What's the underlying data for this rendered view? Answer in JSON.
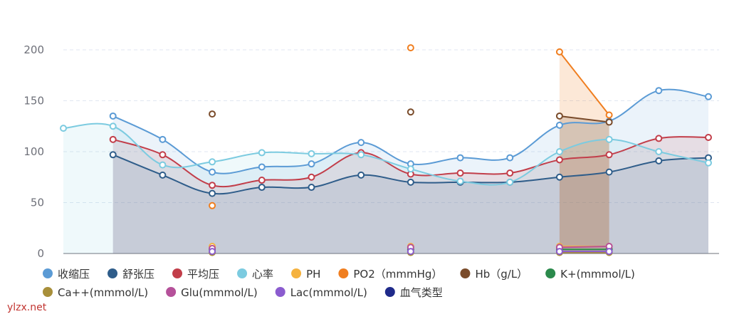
{
  "watermark": "ylzx.net",
  "chart_data": {
    "type": "line",
    "title": "",
    "xlabel": "",
    "ylabel": "",
    "ylim": [
      0,
      200
    ],
    "yticks": [
      0,
      50,
      100,
      150,
      200
    ],
    "grid": true,
    "legend_position": "bottom",
    "x": [
      0,
      1,
      2,
      3,
      4,
      5,
      6,
      7,
      8,
      9,
      10,
      11,
      12,
      13
    ],
    "series": [
      {
        "name": "收缩压",
        "color": "#5b9bd5",
        "area": true,
        "values": [
          null,
          135,
          112,
          80,
          85,
          88,
          109,
          88,
          94,
          94,
          126,
          130,
          160,
          154
        ]
      },
      {
        "name": "舒张压",
        "color": "#2f5d8a",
        "area": true,
        "values": [
          null,
          97,
          77,
          59,
          65,
          65,
          77,
          70,
          70,
          70,
          75,
          80,
          91,
          94
        ]
      },
      {
        "name": "平均压",
        "color": "#c23e4a",
        "area": true,
        "values": [
          null,
          112,
          97,
          67,
          72,
          75,
          99,
          78,
          79,
          79,
          92,
          97,
          113,
          114
        ]
      },
      {
        "name": "心率",
        "color": "#7ccbe0",
        "area": true,
        "values": [
          123,
          125,
          87,
          90,
          99,
          98,
          97,
          83,
          71,
          70,
          100,
          112,
          100,
          89
        ]
      },
      {
        "name": "PH",
        "color": "#f5b23f",
        "values": [
          null,
          null,
          null,
          7,
          null,
          null,
          null,
          7,
          null,
          null,
          7,
          7,
          null,
          null
        ]
      },
      {
        "name": "PO2（mmmHg）",
        "color": "#f07e1f",
        "area": true,
        "values": [
          null,
          null,
          null,
          47,
          null,
          null,
          null,
          202,
          null,
          null,
          198,
          136,
          null,
          null
        ]
      },
      {
        "name": "Hb（g/L）",
        "color": "#7a4b2a",
        "area": true,
        "values": [
          null,
          null,
          null,
          137,
          null,
          null,
          null,
          139,
          null,
          null,
          135,
          129,
          null,
          null
        ]
      },
      {
        "name": "K+(mmmol/L)",
        "color": "#2b8a4c",
        "values": [
          null,
          null,
          null,
          4,
          null,
          null,
          null,
          4,
          null,
          null,
          4,
          4,
          null,
          null
        ]
      },
      {
        "name": "Ca++(mmmol/L)",
        "color": "#a88f3a",
        "values": [
          null,
          null,
          null,
          1,
          null,
          null,
          null,
          1,
          null,
          null,
          1,
          1,
          null,
          null
        ]
      },
      {
        "name": "Glu(mmmol/L)",
        "color": "#b5519a",
        "values": [
          null,
          null,
          null,
          5,
          null,
          null,
          null,
          6,
          null,
          null,
          6,
          7,
          null,
          null
        ]
      },
      {
        "name": "Lac(mmmol/L)",
        "color": "#8b5ccf",
        "values": [
          null,
          null,
          null,
          2,
          null,
          null,
          null,
          2,
          null,
          null,
          2,
          2,
          null,
          null
        ]
      },
      {
        "name": "血气类型",
        "color": "#1f2a8a",
        "values": [
          null,
          null,
          null,
          null,
          null,
          null,
          null,
          null,
          null,
          null,
          null,
          null,
          null,
          null
        ]
      }
    ]
  }
}
